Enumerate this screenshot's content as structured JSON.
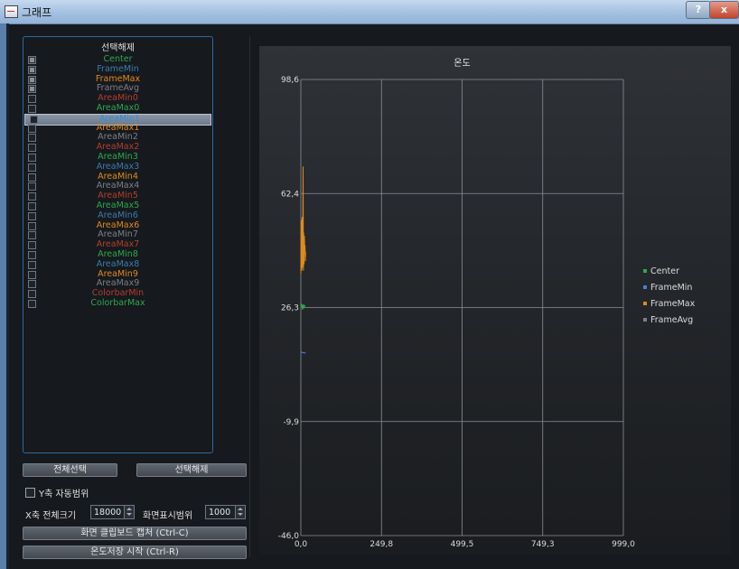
{
  "window": {
    "title": "그래프",
    "help_label": "?",
    "close_label": "x"
  },
  "list": {
    "header": "선택해제",
    "items": [
      {
        "label": "Center",
        "checked": true,
        "color": "#2ea84e"
      },
      {
        "label": "FrameMin",
        "checked": true,
        "color": "#3a7ea8"
      },
      {
        "label": "FrameMax",
        "checked": true,
        "color": "#e08a1c"
      },
      {
        "label": "FrameAvg",
        "checked": true,
        "color": "#7c7f86"
      },
      {
        "label": "AreaMin0",
        "checked": false,
        "color": "#b0402c"
      },
      {
        "label": "AreaMax0",
        "checked": false,
        "color": "#2ea84e"
      },
      {
        "label": "AreaMin1",
        "checked": false,
        "color": "#2d8fd6",
        "selected": true
      },
      {
        "label": "AreaMax1",
        "checked": false,
        "color": "#e08a1c"
      },
      {
        "label": "AreaMin2",
        "checked": false,
        "color": "#7c7f86"
      },
      {
        "label": "AreaMax2",
        "checked": false,
        "color": "#b0402c"
      },
      {
        "label": "AreaMin3",
        "checked": false,
        "color": "#2ea84e"
      },
      {
        "label": "AreaMax3",
        "checked": false,
        "color": "#3a7ea8"
      },
      {
        "label": "AreaMin4",
        "checked": false,
        "color": "#e08a1c"
      },
      {
        "label": "AreaMax4",
        "checked": false,
        "color": "#7c7f86"
      },
      {
        "label": "AreaMin5",
        "checked": false,
        "color": "#b0402c"
      },
      {
        "label": "AreaMax5",
        "checked": false,
        "color": "#2ea84e"
      },
      {
        "label": "AreaMin6",
        "checked": false,
        "color": "#3a7ea8"
      },
      {
        "label": "AreaMax6",
        "checked": false,
        "color": "#e08a1c"
      },
      {
        "label": "AreaMin7",
        "checked": false,
        "color": "#7c7f86"
      },
      {
        "label": "AreaMax7",
        "checked": false,
        "color": "#b0402c"
      },
      {
        "label": "AreaMin8",
        "checked": false,
        "color": "#2ea84e"
      },
      {
        "label": "AreaMax8",
        "checked": false,
        "color": "#3a7ea8"
      },
      {
        "label": "AreaMin9",
        "checked": false,
        "color": "#e08a1c"
      },
      {
        "label": "AreaMax9",
        "checked": false,
        "color": "#7c7f86"
      },
      {
        "label": "ColorbarMin",
        "checked": false,
        "color": "#b0402c"
      },
      {
        "label": "ColorbarMax",
        "checked": false,
        "color": "#2ea84e"
      }
    ]
  },
  "controls": {
    "select_all": "전체선택",
    "deselect": "선택해제",
    "y_auto_label": "Y축 자동범위",
    "x_total_label": "X축 전체크기",
    "x_total_value": "18000",
    "display_range_label": "화면표시범위",
    "display_range_value": "1000",
    "clipboard_button": "화면 클립보드 캡처 (Ctrl-C)",
    "save_button": "온도저장 시작 (Ctrl-R)"
  },
  "chart_data": {
    "type": "line",
    "title": "온도",
    "xlim": [
      0.0,
      999.0
    ],
    "ylim": [
      -46.0,
      98.6
    ],
    "x_ticks": [
      "0,0",
      "249,8",
      "499,5",
      "749,3",
      "999,0"
    ],
    "y_ticks": [
      "98,6",
      "62,4",
      "26,3",
      "-9,9",
      "-46,0"
    ],
    "grid": true,
    "legend_position": "right",
    "series": [
      {
        "name": "Center",
        "color": "#2ea84e",
        "x": [
          0,
          3,
          5,
          7,
          9,
          11,
          14
        ],
        "y": [
          26.3,
          27.5,
          25.6,
          27.2,
          26.0,
          27.0,
          26.6
        ]
      },
      {
        "name": "FrameMin",
        "color": "#4a7ed6",
        "x": [
          0,
          3,
          6,
          9,
          12,
          15
        ],
        "y": [
          12.0,
          12.2,
          11.9,
          12.1,
          11.8,
          12.0
        ]
      },
      {
        "name": "FrameMax",
        "color": "#e08a1c",
        "x": [
          0,
          1,
          2,
          3,
          4,
          5,
          6,
          7,
          8,
          9,
          10,
          11,
          12,
          13,
          14,
          15
        ],
        "y": [
          37,
          54,
          42,
          38,
          55,
          39,
          47,
          71,
          38,
          50,
          40,
          49,
          45,
          46,
          41,
          44
        ]
      },
      {
        "name": "FrameAvg",
        "color": "#7c7f86",
        "x": [],
        "y": []
      }
    ]
  }
}
